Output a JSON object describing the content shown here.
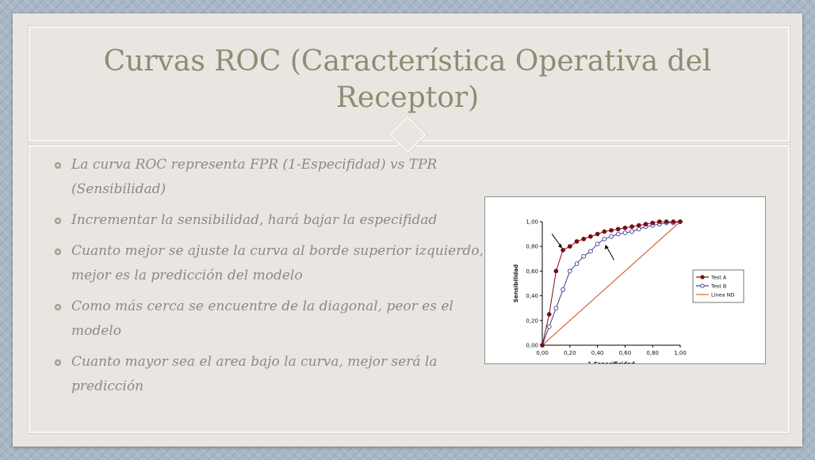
{
  "slide": {
    "title": "Curvas ROC (Característica Operativa del Receptor)",
    "bullets": [
      "La curva ROC representa FPR (1-Especifidad) vs TPR (Sensibilidad)",
      "Incrementar la sensibilidad, hará bajar la especifidad",
      "Cuanto mejor se ajuste la curva al borde superior izquierdo, mejor es la predicción del modelo",
      "Como más cerca se encuentre de la diagonal, peor es el modelo",
      "Cuanto mayor sea el area bajo la curva, mejor será la predicción"
    ],
    "bullet_icon": "gear-icon"
  },
  "colors": {
    "title": "#928a72",
    "body_text": "#8a8a8a",
    "slide_bg": "#e9e6e1",
    "test_a": "#7b0c17",
    "test_b": "#3b3d8f",
    "nd_line": "#d9683b"
  },
  "chart_data": {
    "type": "line",
    "xlabel": "1-Especificidad",
    "ylabel": "Sensibilidad",
    "xlim": [
      0,
      1
    ],
    "ylim": [
      0,
      1
    ],
    "xticks": [
      "0,00",
      "0,20",
      "0,40",
      "0,60",
      "0,80",
      "1,00"
    ],
    "yticks": [
      "0,00",
      "0,20",
      "0,40",
      "0,60",
      "0,80",
      "1,00"
    ],
    "legend_position": "right",
    "series": [
      {
        "name": "Test A",
        "marker": "filled-circle",
        "color": "#7b0c17",
        "x": [
          0,
          0.05,
          0.1,
          0.15,
          0.2,
          0.25,
          0.3,
          0.35,
          0.4,
          0.45,
          0.5,
          0.55,
          0.6,
          0.65,
          0.7,
          0.75,
          0.8,
          0.85,
          0.9,
          0.95,
          1.0
        ],
        "y": [
          0,
          0.25,
          0.6,
          0.77,
          0.8,
          0.84,
          0.86,
          0.88,
          0.9,
          0.92,
          0.93,
          0.94,
          0.95,
          0.96,
          0.97,
          0.98,
          0.99,
          1.0,
          1.0,
          1.0,
          1.0
        ]
      },
      {
        "name": "Test B",
        "marker": "open-circle",
        "color": "#3b3d8f",
        "x": [
          0,
          0.05,
          0.1,
          0.15,
          0.2,
          0.25,
          0.3,
          0.35,
          0.4,
          0.45,
          0.5,
          0.55,
          0.6,
          0.65,
          0.7,
          0.75,
          0.8,
          0.85,
          0.9,
          0.95,
          1.0
        ],
        "y": [
          0,
          0.15,
          0.3,
          0.45,
          0.6,
          0.66,
          0.72,
          0.76,
          0.82,
          0.86,
          0.88,
          0.9,
          0.91,
          0.92,
          0.94,
          0.96,
          0.97,
          0.98,
          0.99,
          0.99,
          1.0
        ]
      },
      {
        "name": "Línea ND",
        "marker": "none",
        "color": "#d9683b",
        "x": [
          0,
          1
        ],
        "y": [
          0,
          1
        ]
      }
    ],
    "annotations": [
      {
        "type": "arrow",
        "points_to": {
          "series": "Test A",
          "x": 0.15,
          "y": 0.77
        }
      },
      {
        "type": "arrow",
        "points_to": {
          "series": "Test B",
          "x": 0.45,
          "y": 0.86
        }
      }
    ]
  }
}
